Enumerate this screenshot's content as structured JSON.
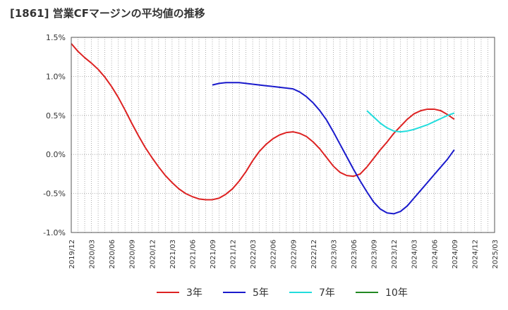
{
  "title": "[1861]  営業CFマージンの平均値の推移",
  "chart_data": {
    "type": "line",
    "title": "[1861]  営業CFマージンの平均値の推移",
    "xlabel": "",
    "ylabel": "",
    "ylim": [
      -1.0,
      1.5
    ],
    "y_ticks": [
      "1.5%",
      "1.0%",
      "0.5%",
      "0.0%",
      "-0.5%",
      "-1.0%"
    ],
    "y_tick_values": [
      1.5,
      1.0,
      0.5,
      0.0,
      -0.5,
      -1.0
    ],
    "x_ticks": [
      "2019/12",
      "2020/03",
      "2020/06",
      "2020/09",
      "2020/12",
      "2021/03",
      "2021/06",
      "2021/09",
      "2021/12",
      "2022/03",
      "2022/06",
      "2022/09",
      "2022/12",
      "2023/03",
      "2023/06",
      "2023/09",
      "2023/12",
      "2024/03",
      "2024/06",
      "2024/09",
      "2024/12",
      "2025/03"
    ],
    "grid": true,
    "legend_position": "bottom",
    "series": [
      {
        "name": "3年",
        "color": "#dd2222",
        "points": [
          [
            "2019/12",
            1.42
          ],
          [
            "2020/01",
            1.32
          ],
          [
            "2020/02",
            1.24
          ],
          [
            "2020/03",
            1.17
          ],
          [
            "2020/04",
            1.09
          ],
          [
            "2020/05",
            0.99
          ],
          [
            "2020/06",
            0.87
          ],
          [
            "2020/07",
            0.73
          ],
          [
            "2020/08",
            0.57
          ],
          [
            "2020/09",
            0.4
          ],
          [
            "2020/10",
            0.24
          ],
          [
            "2020/11",
            0.09
          ],
          [
            "2020/12",
            -0.04
          ],
          [
            "2021/01",
            -0.16
          ],
          [
            "2021/02",
            -0.27
          ],
          [
            "2021/03",
            -0.36
          ],
          [
            "2021/04",
            -0.44
          ],
          [
            "2021/05",
            -0.5
          ],
          [
            "2021/06",
            -0.54
          ],
          [
            "2021/07",
            -0.57
          ],
          [
            "2021/08",
            -0.58
          ],
          [
            "2021/09",
            -0.58
          ],
          [
            "2021/10",
            -0.56
          ],
          [
            "2021/11",
            -0.51
          ],
          [
            "2021/12",
            -0.44
          ],
          [
            "2022/01",
            -0.34
          ],
          [
            "2022/02",
            -0.22
          ],
          [
            "2022/03",
            -0.08
          ],
          [
            "2022/04",
            0.04
          ],
          [
            "2022/05",
            0.13
          ],
          [
            "2022/06",
            0.2
          ],
          [
            "2022/07",
            0.25
          ],
          [
            "2022/08",
            0.28
          ],
          [
            "2022/09",
            0.29
          ],
          [
            "2022/10",
            0.27
          ],
          [
            "2022/11",
            0.23
          ],
          [
            "2022/12",
            0.16
          ],
          [
            "2023/01",
            0.07
          ],
          [
            "2023/02",
            -0.04
          ],
          [
            "2023/03",
            -0.15
          ],
          [
            "2023/04",
            -0.23
          ],
          [
            "2023/05",
            -0.27
          ],
          [
            "2023/06",
            -0.28
          ],
          [
            "2023/07",
            -0.25
          ],
          [
            "2023/08",
            -0.16
          ],
          [
            "2023/09",
            -0.05
          ],
          [
            "2023/10",
            0.06
          ],
          [
            "2023/11",
            0.16
          ],
          [
            "2023/12",
            0.27
          ],
          [
            "2024/01",
            0.36
          ],
          [
            "2024/02",
            0.45
          ],
          [
            "2024/03",
            0.52
          ],
          [
            "2024/04",
            0.56
          ],
          [
            "2024/05",
            0.58
          ],
          [
            "2024/06",
            0.58
          ],
          [
            "2024/07",
            0.56
          ],
          [
            "2024/08",
            0.51
          ],
          [
            "2024/09",
            0.45
          ]
        ]
      },
      {
        "name": "5年",
        "color": "#1a1acc",
        "points": [
          [
            "2021/09",
            0.89
          ],
          [
            "2021/10",
            0.91
          ],
          [
            "2021/11",
            0.92
          ],
          [
            "2021/12",
            0.92
          ],
          [
            "2022/01",
            0.92
          ],
          [
            "2022/02",
            0.91
          ],
          [
            "2022/03",
            0.9
          ],
          [
            "2022/04",
            0.89
          ],
          [
            "2022/05",
            0.88
          ],
          [
            "2022/06",
            0.87
          ],
          [
            "2022/07",
            0.86
          ],
          [
            "2022/08",
            0.85
          ],
          [
            "2022/09",
            0.84
          ],
          [
            "2022/10",
            0.8
          ],
          [
            "2022/11",
            0.74
          ],
          [
            "2022/12",
            0.66
          ],
          [
            "2023/01",
            0.56
          ],
          [
            "2023/02",
            0.44
          ],
          [
            "2023/03",
            0.29
          ],
          [
            "2023/04",
            0.13
          ],
          [
            "2023/05",
            -0.03
          ],
          [
            "2023/06",
            -0.19
          ],
          [
            "2023/07",
            -0.34
          ],
          [
            "2023/08",
            -0.48
          ],
          [
            "2023/09",
            -0.61
          ],
          [
            "2023/10",
            -0.7
          ],
          [
            "2023/11",
            -0.75
          ],
          [
            "2023/12",
            -0.76
          ],
          [
            "2024/01",
            -0.73
          ],
          [
            "2024/02",
            -0.66
          ],
          [
            "2024/03",
            -0.56
          ],
          [
            "2024/04",
            -0.46
          ],
          [
            "2024/05",
            -0.36
          ],
          [
            "2024/06",
            -0.26
          ],
          [
            "2024/07",
            -0.16
          ],
          [
            "2024/08",
            -0.06
          ],
          [
            "2024/09",
            0.06
          ]
        ]
      },
      {
        "name": "7年",
        "color": "#22dddd",
        "points": [
          [
            "2023/08",
            0.56
          ],
          [
            "2023/09",
            0.48
          ],
          [
            "2023/10",
            0.4
          ],
          [
            "2023/11",
            0.34
          ],
          [
            "2023/12",
            0.3
          ],
          [
            "2024/01",
            0.29
          ],
          [
            "2024/02",
            0.3
          ],
          [
            "2024/03",
            0.32
          ],
          [
            "2024/04",
            0.35
          ],
          [
            "2024/05",
            0.38
          ],
          [
            "2024/06",
            0.42
          ],
          [
            "2024/07",
            0.46
          ],
          [
            "2024/08",
            0.5
          ],
          [
            "2024/09",
            0.53
          ]
        ]
      },
      {
        "name": "10年",
        "color": "#228822",
        "points": []
      }
    ]
  }
}
